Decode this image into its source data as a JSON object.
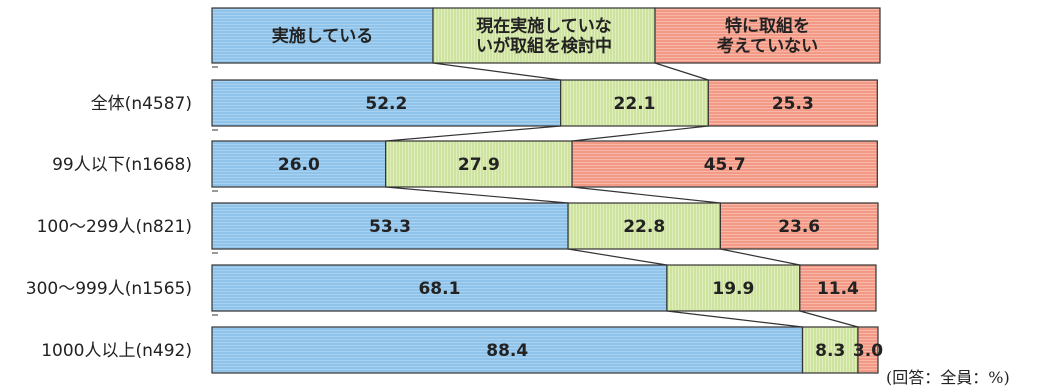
{
  "chart_data": {
    "type": "bar",
    "orientation": "horizontal",
    "stacked": true,
    "categories": [
      "全体(n4587)",
      "99人以下(n1668)",
      "100〜299人(n821)",
      "300〜999人(n1565)",
      "1000人以上(n492)"
    ],
    "series": [
      {
        "name": "実施している",
        "lines": [
          "実施している"
        ],
        "color": "#8fc3ea",
        "values": [
          52.2,
          26.0,
          53.3,
          68.1,
          88.4
        ]
      },
      {
        "name": "現在実施していないが取組を検討中",
        "lines": [
          "現在実施していな",
          "いが取組を検討中"
        ],
        "color": "#cfe3a0",
        "values": [
          22.1,
          27.9,
          22.8,
          19.9,
          8.3
        ]
      },
      {
        "name": "特に取組を考えていない",
        "lines": [
          "特に取組を",
          "考えていない"
        ],
        "color": "#f39a86",
        "values": [
          25.3,
          45.7,
          23.6,
          11.4,
          3.0
        ]
      }
    ],
    "xlim": [
      0,
      100
    ],
    "legend": "top",
    "grid": false
  },
  "note": "(回答：全員：%)"
}
